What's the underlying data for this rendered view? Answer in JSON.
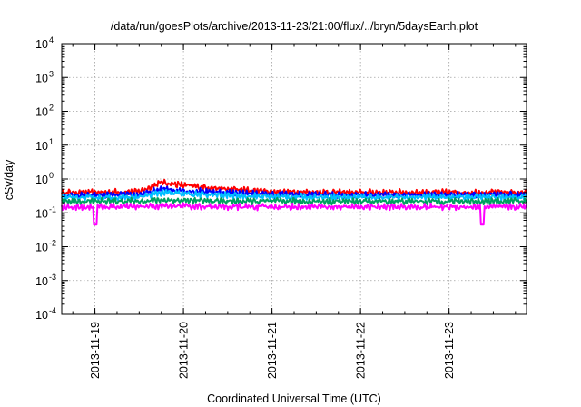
{
  "chart_data": {
    "type": "line",
    "title": "/data/run/goesPlots/archive/2013-11-23/21:00/flux/../bryn/5daysEarth.plot",
    "xlabel": "Coordinated Universal Time (UTC)",
    "ylabel": "cSv/day",
    "yscale": "log",
    "ylim": [
      0.0001,
      10000
    ],
    "xlim": [
      "2013-11-18 15:00",
      "2013-11-23 21:00"
    ],
    "grid": true,
    "x_ticks": [
      {
        "label": "2013-11-19",
        "value": "2013-11-19 00:00"
      },
      {
        "label": "2013-11-20",
        "value": "2013-11-20 00:00"
      },
      {
        "label": "2013-11-21",
        "value": "2013-11-21 00:00"
      },
      {
        "label": "2013-11-22",
        "value": "2013-11-22 00:00"
      },
      {
        "label": "2013-11-23",
        "value": "2013-11-23 00:00"
      }
    ],
    "y_ticks": [
      {
        "base": "10",
        "exp": "-4",
        "value": 0.0001
      },
      {
        "base": "10",
        "exp": "-3",
        "value": 0.001
      },
      {
        "base": "10",
        "exp": "-2",
        "value": 0.01
      },
      {
        "base": "10",
        "exp": "-1",
        "value": 0.1
      },
      {
        "base": "10",
        "exp": "0",
        "value": 1
      },
      {
        "base": "10",
        "exp": "1",
        "value": 10
      },
      {
        "base": "10",
        "exp": "2",
        "value": 100
      },
      {
        "base": "10",
        "exp": "3",
        "value": 1000
      },
      {
        "base": "10",
        "exp": "4",
        "value": 10000
      }
    ],
    "x": [
      "2013-11-18 15:00",
      "2013-11-19 00:00",
      "2013-11-19 12:00",
      "2013-11-19 18:00",
      "2013-11-20 00:00",
      "2013-11-20 12:00",
      "2013-11-21 00:00",
      "2013-11-22 00:00",
      "2013-11-23 00:00",
      "2013-11-23 21:00"
    ],
    "series": [
      {
        "color": "#ff0000",
        "values": [
          0.4,
          0.4,
          0.42,
          0.8,
          0.65,
          0.5,
          0.42,
          0.4,
          0.4,
          0.4
        ]
      },
      {
        "color": "#0000ff",
        "values": [
          0.33,
          0.33,
          0.34,
          0.5,
          0.45,
          0.4,
          0.35,
          0.34,
          0.34,
          0.34
        ]
      },
      {
        "color": "#00bfff",
        "values": [
          0.28,
          0.28,
          0.29,
          0.4,
          0.36,
          0.33,
          0.3,
          0.29,
          0.29,
          0.29
        ]
      },
      {
        "color": "#00a060",
        "values": [
          0.22,
          0.22,
          0.22,
          0.24,
          0.23,
          0.22,
          0.22,
          0.22,
          0.22,
          0.22
        ]
      },
      {
        "color": "#ff00ff",
        "values": [
          0.15,
          0.15,
          0.15,
          0.16,
          0.16,
          0.15,
          0.15,
          0.15,
          0.15,
          0.15
        ]
      }
    ],
    "dips": [
      "2013-11-19 00:00",
      "2013-11-23 09:00"
    ],
    "dip_min": 0.045
  }
}
